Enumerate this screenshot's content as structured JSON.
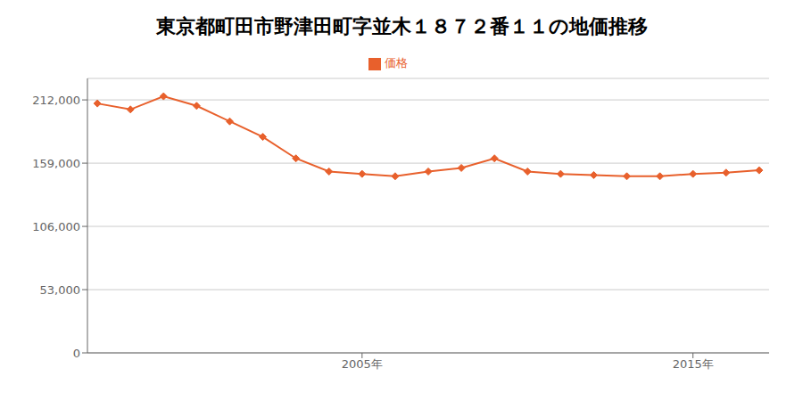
{
  "chart_data": {
    "type": "line",
    "title": "東京都町田市野津田町字並木１８７２番１１の地価推移",
    "x": [
      1997,
      1998,
      1999,
      2000,
      2001,
      2002,
      2003,
      2004,
      2005,
      2006,
      2007,
      2008,
      2009,
      2010,
      2011,
      2012,
      2013,
      2014,
      2015,
      2016,
      2017
    ],
    "series": [
      {
        "name": "価格",
        "color": "#e8602c",
        "marker": "diamond",
        "values": [
          209000,
          204000,
          215000,
          207000,
          194000,
          181000,
          163000,
          152000,
          150000,
          148000,
          152000,
          155000,
          163000,
          152000,
          150000,
          149000,
          148000,
          148000,
          150000,
          151000,
          153000
        ]
      }
    ],
    "xlim": [
      1996.7,
      2017.3
    ],
    "xticks": [
      {
        "value": 2005,
        "label": "2005年"
      },
      {
        "value": 2015,
        "label": "2015年"
      }
    ],
    "ylim": [
      0,
      230000
    ],
    "yticks": [
      0,
      {
        "value": 53000,
        "label": "53,000"
      },
      {
        "value": 106000,
        "label": "106,000"
      },
      {
        "value": 159000,
        "label": "159,000"
      },
      {
        "value": 212000,
        "label": "212,000"
      }
    ],
    "grid": true,
    "legend": "top"
  }
}
